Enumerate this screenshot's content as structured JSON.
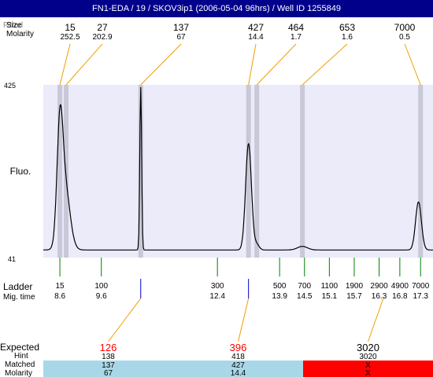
{
  "window": {
    "title": "FN1-EDA / 19 / SKOV3ip1 (2006-05-04 96hrs) / Well ID 1255849"
  },
  "header_rows": {
    "label_fit": "Fitted",
    "label_size": "Size",
    "label_molarity": "Molarity"
  },
  "chart_data": {
    "type": "line",
    "ylabel": "Fluo.",
    "ylim": [
      41,
      425
    ],
    "x_range_mig_time": [
      8.2,
      17.6
    ],
    "fitted_peaks": [
      {
        "size": "15",
        "molarity": "252.5",
        "mig_time": 8.6
      },
      {
        "size": "27",
        "molarity": "202.9",
        "mig_time": 8.75
      },
      {
        "size": "137",
        "molarity": "67",
        "mig_time": 10.55
      },
      {
        "size": "427",
        "molarity": "14.4",
        "mig_time": 13.15
      },
      {
        "size": "464",
        "molarity": "1.7",
        "mig_time": 13.35
      },
      {
        "size": "653",
        "molarity": "1.6",
        "mig_time": 14.45
      },
      {
        "size": "7000",
        "molarity": "0.5",
        "mig_time": 17.3
      }
    ],
    "signal": {
      "baseline": 58,
      "peaks": [
        {
          "mig_time": 8.6,
          "height": 290,
          "width": 0.07
        },
        {
          "mig_time": 8.72,
          "height": 200,
          "width": 0.12
        },
        {
          "mig_time": 10.55,
          "height": 420,
          "width": 0.022
        },
        {
          "mig_time": 13.15,
          "height": 295,
          "width": 0.07
        },
        {
          "mig_time": 13.35,
          "height": 70,
          "width": 0.06
        },
        {
          "mig_time": 14.45,
          "height": 66,
          "width": 0.12
        },
        {
          "mig_time": 17.25,
          "height": 165,
          "width": 0.07
        }
      ]
    },
    "ladder": {
      "label": "Ladder",
      "mig_label": "Mig. time",
      "items": [
        {
          "size": "15",
          "mig_time": "8.6",
          "t": 8.6
        },
        {
          "size": "100",
          "mig_time": "9.6",
          "t": 9.6
        },
        {
          "size": "300",
          "mig_time": "12.4",
          "t": 12.4
        },
        {
          "size": "500",
          "mig_time": "13.9",
          "t": 13.9
        },
        {
          "size": "700",
          "mig_time": "14.5",
          "t": 14.5
        },
        {
          "size": "1100",
          "mig_time": "15.1",
          "t": 15.1
        },
        {
          "size": "1900",
          "mig_time": "15.7",
          "t": 15.7
        },
        {
          "size": "2900",
          "mig_time": "16.3",
          "t": 16.3
        },
        {
          "size": "4900",
          "mig_time": "16.8",
          "t": 16.8
        },
        {
          "size": "7000",
          "mig_time": "17.3",
          "t": 17.3
        }
      ]
    },
    "expected": {
      "label_expected": "Expected",
      "label_hint": "Hint",
      "label_matched": "Matched",
      "label_molarity": "Molarity",
      "columns": [
        {
          "expected": "126",
          "hint": "138",
          "matched": "137",
          "molarity": "67",
          "status": "match",
          "t": 10.55,
          "expected_color": "#ff0000"
        },
        {
          "expected": "396",
          "hint": "418",
          "matched": "427",
          "molarity": "14.4",
          "status": "match",
          "t": 13.15,
          "expected_color": "#ff0000"
        },
        {
          "expected": "3020",
          "hint": "3020",
          "matched": "X",
          "molarity": "X",
          "status": "no-match",
          "t": 16.4,
          "expected_color": "#000000"
        }
      ]
    },
    "colors": {
      "title_bar": "#00008b",
      "plot_bg": "#ebebfa",
      "peak_band": "#c8c8d8",
      "leader_line": "#f0a000",
      "ladder_tick": "#008000",
      "marker_tick": "#0000cc",
      "match_bg": "#a8d8e8",
      "nomatch_bg": "#ff0000",
      "trace": "#000000"
    }
  }
}
